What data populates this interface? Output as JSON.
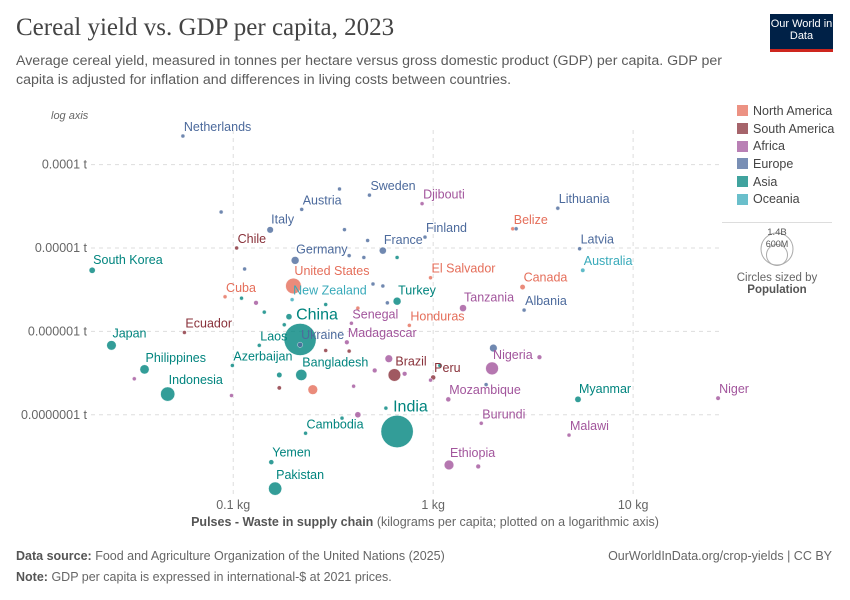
{
  "header": {
    "title": "Cereal yield vs. GDP per capita, 2023",
    "subtitle": "Average cereal yield, measured in tonnes per hectare versus gross domestic product (GDP) per capita. GDP per capita is adjusted for inflation and differences in living costs between countries.",
    "logo_text": "Our World in Data"
  },
  "footer": {
    "source_label": "Data source:",
    "source": "Food and Agriculture Organization of the United Nations (2025)",
    "note_label": "Note:",
    "note": "GDP per capita is expressed in international-$ at 2021 prices.",
    "credit": "OurWorldInData.org/crop-yields | CC BY"
  },
  "chart_data": {
    "type": "scatter",
    "title": "Cereal yield vs. GDP per capita, 2023",
    "xlabel_bold": "Pulses - Waste in supply chain",
    "xlabel_rest": "(kilograms per capita; plotted on a logarithmic axis)",
    "y_scale_note": "log axis",
    "x_scale": "log",
    "y_scale": "log",
    "xlim": [
      0.0136,
      27.2
    ],
    "ylim": [
      9.5e-09,
      0.00026
    ],
    "x_ticks": [
      {
        "v": 0.1,
        "label": "0.1 kg"
      },
      {
        "v": 1,
        "label": "1 kg"
      },
      {
        "v": 10,
        "label": "10 kg"
      }
    ],
    "y_ticks": [
      {
        "v": 0.0001,
        "label": "0.0001 t"
      },
      {
        "v": 1e-05,
        "label": "0.00001 t"
      },
      {
        "v": 1e-06,
        "label": "0.000001 t"
      },
      {
        "v": 1e-07,
        "label": "0.0000001 t"
      }
    ],
    "grid": true,
    "legend_position": "right",
    "regions": [
      {
        "name": "North America",
        "color": "#e56e5a"
      },
      {
        "name": "South America",
        "color": "#883039"
      },
      {
        "name": "Africa",
        "color": "#a2559c"
      },
      {
        "name": "Europe",
        "color": "#4c6a9c"
      },
      {
        "name": "Asia",
        "color": "#00847e"
      },
      {
        "name": "Oceania",
        "color": "#38aaba"
      }
    ],
    "size_legend": {
      "title": "Circles sized by",
      "variable": "Population",
      "values": [
        "1.4B",
        "600M"
      ]
    },
    "points": [
      {
        "label": "Netherlands",
        "region": "Europe",
        "x": 0.056,
        "y": 0.00022,
        "pop": 18
      },
      {
        "label": "Sweden",
        "region": "Europe",
        "x": 0.48,
        "y": 4.3e-05,
        "pop": 10
      },
      {
        "label": "Austria",
        "region": "Europe",
        "x": 0.22,
        "y": 2.9e-05,
        "pop": 9
      },
      {
        "label": "Italy",
        "region": "Europe",
        "x": 0.153,
        "y": 1.65e-05,
        "pop": 59
      },
      {
        "label": "Djibouti",
        "region": "Africa",
        "x": 0.88,
        "y": 3.4e-05,
        "pop": 1
      },
      {
        "label": "Finland",
        "region": "Europe",
        "x": 0.91,
        "y": 1.35e-05,
        "pop": 6
      },
      {
        "label": "France",
        "region": "Europe",
        "x": 0.56,
        "y": 9.3e-06,
        "pop": 68
      },
      {
        "label": "Chile",
        "region": "South America",
        "x": 0.104,
        "y": 1e-05,
        "pop": 20
      },
      {
        "label": "Germany",
        "region": "Europe",
        "x": 0.204,
        "y": 7.1e-06,
        "pop": 84
      },
      {
        "label": "South Korea",
        "region": "Asia",
        "x": 0.0197,
        "y": 5.4e-06,
        "pop": 52
      },
      {
        "label": "United States",
        "region": "North America",
        "x": 0.2,
        "y": 3.5e-06,
        "pop": 335
      },
      {
        "label": "Cuba",
        "region": "North America",
        "x": 0.091,
        "y": 2.6e-06,
        "pop": 11
      },
      {
        "label": "New Zealand",
        "region": "Oceania",
        "x": 0.197,
        "y": 2.4e-06,
        "pop": 5
      },
      {
        "label": "Turkey",
        "region": "Asia",
        "x": 0.66,
        "y": 2.3e-06,
        "pop": 85
      },
      {
        "label": "China",
        "region": "Asia",
        "x": 0.216,
        "y": 8e-07,
        "pop": 1410,
        "big": true
      },
      {
        "label": "Ukraine",
        "region": "Europe",
        "x": 0.216,
        "y": 6.9e-07,
        "pop": 38
      },
      {
        "label": "Laos",
        "region": "Asia",
        "x": 0.135,
        "y": 6.8e-07,
        "pop": 7
      },
      {
        "label": "Senegal",
        "region": "Africa",
        "x": 0.39,
        "y": 1.25e-06,
        "pop": 18
      },
      {
        "label": "Honduras",
        "region": "North America",
        "x": 0.76,
        "y": 1.18e-06,
        "pop": 10
      },
      {
        "label": "Ecuador",
        "region": "South America",
        "x": 0.057,
        "y": 9.7e-07,
        "pop": 18
      },
      {
        "label": "Japan",
        "region": "Asia",
        "x": 0.0246,
        "y": 6.8e-07,
        "pop": 124
      },
      {
        "label": "Madagascar",
        "region": "Africa",
        "x": 0.37,
        "y": 7.4e-07,
        "pop": 30
      },
      {
        "label": "Philippines",
        "region": "Asia",
        "x": 0.036,
        "y": 3.5e-07,
        "pop": 117
      },
      {
        "label": "Azerbaijan",
        "region": "Asia",
        "x": 0.099,
        "y": 3.9e-07,
        "pop": 10
      },
      {
        "label": "Bangladesh",
        "region": "Asia",
        "x": 0.219,
        "y": 3e-07,
        "pop": 172
      },
      {
        "label": "Brazil",
        "region": "South America",
        "x": 0.64,
        "y": 3e-07,
        "pop": 216
      },
      {
        "label": "Peru",
        "region": "South America",
        "x": 1.0,
        "y": 2.8e-07,
        "pop": 34
      },
      {
        "label": "Nigeria",
        "region": "Africa",
        "x": 1.97,
        "y": 3.6e-07,
        "pop": 225
      },
      {
        "label": "Indonesia",
        "region": "Asia",
        "x": 0.047,
        "y": 1.77e-07,
        "pop": 278
      },
      {
        "label": "Mozambique",
        "region": "Africa",
        "x": 1.19,
        "y": 1.53e-07,
        "pop": 33
      },
      {
        "label": "Myanmar",
        "region": "Asia",
        "x": 5.3,
        "y": 1.53e-07,
        "pop": 54
      },
      {
        "label": "Niger",
        "region": "Africa",
        "x": 26.6,
        "y": 1.58e-07,
        "pop": 27
      },
      {
        "label": "India",
        "region": "Asia",
        "x": 0.66,
        "y": 6.3e-08,
        "pop": 1430,
        "big": true
      },
      {
        "label": "Cambodia",
        "region": "Asia",
        "x": 0.23,
        "y": 6e-08,
        "pop": 17
      },
      {
        "label": "Burundi",
        "region": "Africa",
        "x": 1.74,
        "y": 7.9e-08,
        "pop": 13
      },
      {
        "label": "Malawi",
        "region": "Africa",
        "x": 4.78,
        "y": 5.7e-08,
        "pop": 21
      },
      {
        "label": "Yemen",
        "region": "Asia",
        "x": 0.155,
        "y": 2.7e-08,
        "pop": 34
      },
      {
        "label": "Ethiopia",
        "region": "Africa",
        "x": 1.2,
        "y": 2.5e-08,
        "pop": 127
      },
      {
        "label": "Pakistan",
        "region": "Asia",
        "x": 0.162,
        "y": 1.3e-08,
        "pop": 240
      },
      {
        "label": "Lithuania",
        "region": "Europe",
        "x": 4.2,
        "y": 3e-05,
        "pop": 3
      },
      {
        "label": "Belize",
        "region": "North America",
        "x": 2.5,
        "y": 1.7e-05,
        "pop": 0.4
      },
      {
        "label": "Latvia",
        "region": "Europe",
        "x": 5.4,
        "y": 9.8e-06,
        "pop": 2
      },
      {
        "label": "Australia",
        "region": "Oceania",
        "x": 5.6,
        "y": 5.4e-06,
        "pop": 26
      },
      {
        "label": "El Salvador",
        "region": "North America",
        "x": 0.97,
        "y": 4.4e-06,
        "pop": 6
      },
      {
        "label": "Canada",
        "region": "North America",
        "x": 2.8,
        "y": 3.4e-06,
        "pop": 39
      },
      {
        "label": "Tanzania",
        "region": "Africa",
        "x": 1.41,
        "y": 1.9e-06,
        "pop": 67
      },
      {
        "label": "Albania",
        "region": "Europe",
        "x": 2.85,
        "y": 1.8e-06,
        "pop": 3
      },
      {
        "region": "Europe",
        "x": 0.087,
        "y": 2.7e-05,
        "pop": 5
      },
      {
        "region": "Europe",
        "x": 0.34,
        "y": 5.1e-05,
        "pop": 5
      },
      {
        "region": "Europe",
        "x": 0.36,
        "y": 1.66e-05,
        "pop": 5
      },
      {
        "region": "Europe",
        "x": 0.47,
        "y": 1.23e-05,
        "pop": 17
      },
      {
        "region": "Europe",
        "x": 2.6,
        "y": 1.7e-05,
        "pop": 4
      },
      {
        "region": "Europe",
        "x": 0.38,
        "y": 8.1e-06,
        "pop": 5
      },
      {
        "region": "Europe",
        "x": 0.45,
        "y": 7.7e-06,
        "pop": 5
      },
      {
        "region": "Asia",
        "x": 0.66,
        "y": 7.7e-06,
        "pop": 4
      },
      {
        "region": "Europe",
        "x": 0.114,
        "y": 5.6e-06,
        "pop": 5
      },
      {
        "region": "Africa",
        "x": 0.13,
        "y": 2.2e-06,
        "pop": 30
      },
      {
        "region": "Asia",
        "x": 0.143,
        "y": 1.7e-06,
        "pop": 15
      },
      {
        "region": "Asia",
        "x": 0.11,
        "y": 2.5e-06,
        "pop": 4
      },
      {
        "region": "Europe",
        "x": 0.5,
        "y": 3.7e-06,
        "pop": 5
      },
      {
        "region": "Europe",
        "x": 0.56,
        "y": 3.5e-06,
        "pop": 5
      },
      {
        "region": "Europe",
        "x": 0.59,
        "y": 2.2e-06,
        "pop": 8
      },
      {
        "region": "Asia",
        "x": 0.29,
        "y": 2.1e-06,
        "pop": 5
      },
      {
        "region": "Asia",
        "x": 0.19,
        "y": 1.5e-06,
        "pop": 50
      },
      {
        "region": "Asia",
        "x": 0.18,
        "y": 1.2e-06,
        "pop": 5
      },
      {
        "region": "North America",
        "x": 0.42,
        "y": 1.9e-06,
        "pop": 4
      },
      {
        "region": "Africa",
        "x": 0.032,
        "y": 2.7e-07,
        "pop": 20
      },
      {
        "region": "Africa",
        "x": 0.098,
        "y": 1.7e-07,
        "pop": 8
      },
      {
        "region": "Asia",
        "x": 0.17,
        "y": 3e-07,
        "pop": 40
      },
      {
        "region": "South America",
        "x": 0.17,
        "y": 2.1e-07,
        "pop": 25
      },
      {
        "region": "North America",
        "x": 0.25,
        "y": 2e-07,
        "pop": 128
      },
      {
        "region": "Africa",
        "x": 0.4,
        "y": 2.2e-07,
        "pop": 10
      },
      {
        "region": "Africa",
        "x": 0.6,
        "y": 4.7e-07,
        "pop": 80
      },
      {
        "region": "Africa",
        "x": 0.51,
        "y": 3.4e-07,
        "pop": 30
      },
      {
        "region": "Africa",
        "x": 0.72,
        "y": 3.1e-07,
        "pop": 30
      },
      {
        "region": "Asia",
        "x": 1.08,
        "y": 3.9e-07,
        "pop": 4
      },
      {
        "region": "Africa",
        "x": 3.4,
        "y": 4.9e-07,
        "pop": 30
      },
      {
        "region": "Europe",
        "x": 2.0,
        "y": 6.3e-07,
        "pop": 80
      },
      {
        "region": "Africa",
        "x": 1.68,
        "y": 2.4e-08,
        "pop": 30
      },
      {
        "region": "Africa",
        "x": 0.42,
        "y": 1e-07,
        "pop": 50
      },
      {
        "region": "Asia",
        "x": 0.35,
        "y": 9.1e-08,
        "pop": 4
      },
      {
        "region": "Asia",
        "x": 0.58,
        "y": 1.2e-07,
        "pop": 5
      },
      {
        "region": "Africa",
        "x": 0.97,
        "y": 2.6e-07,
        "pop": 8
      },
      {
        "region": "Europe",
        "x": 1.84,
        "y": 2.3e-07,
        "pop": 4
      },
      {
        "region": "South America",
        "x": 0.38,
        "y": 5.8e-07,
        "pop": 8
      },
      {
        "region": "South America",
        "x": 0.29,
        "y": 5.9e-07,
        "pop": 7
      }
    ]
  }
}
